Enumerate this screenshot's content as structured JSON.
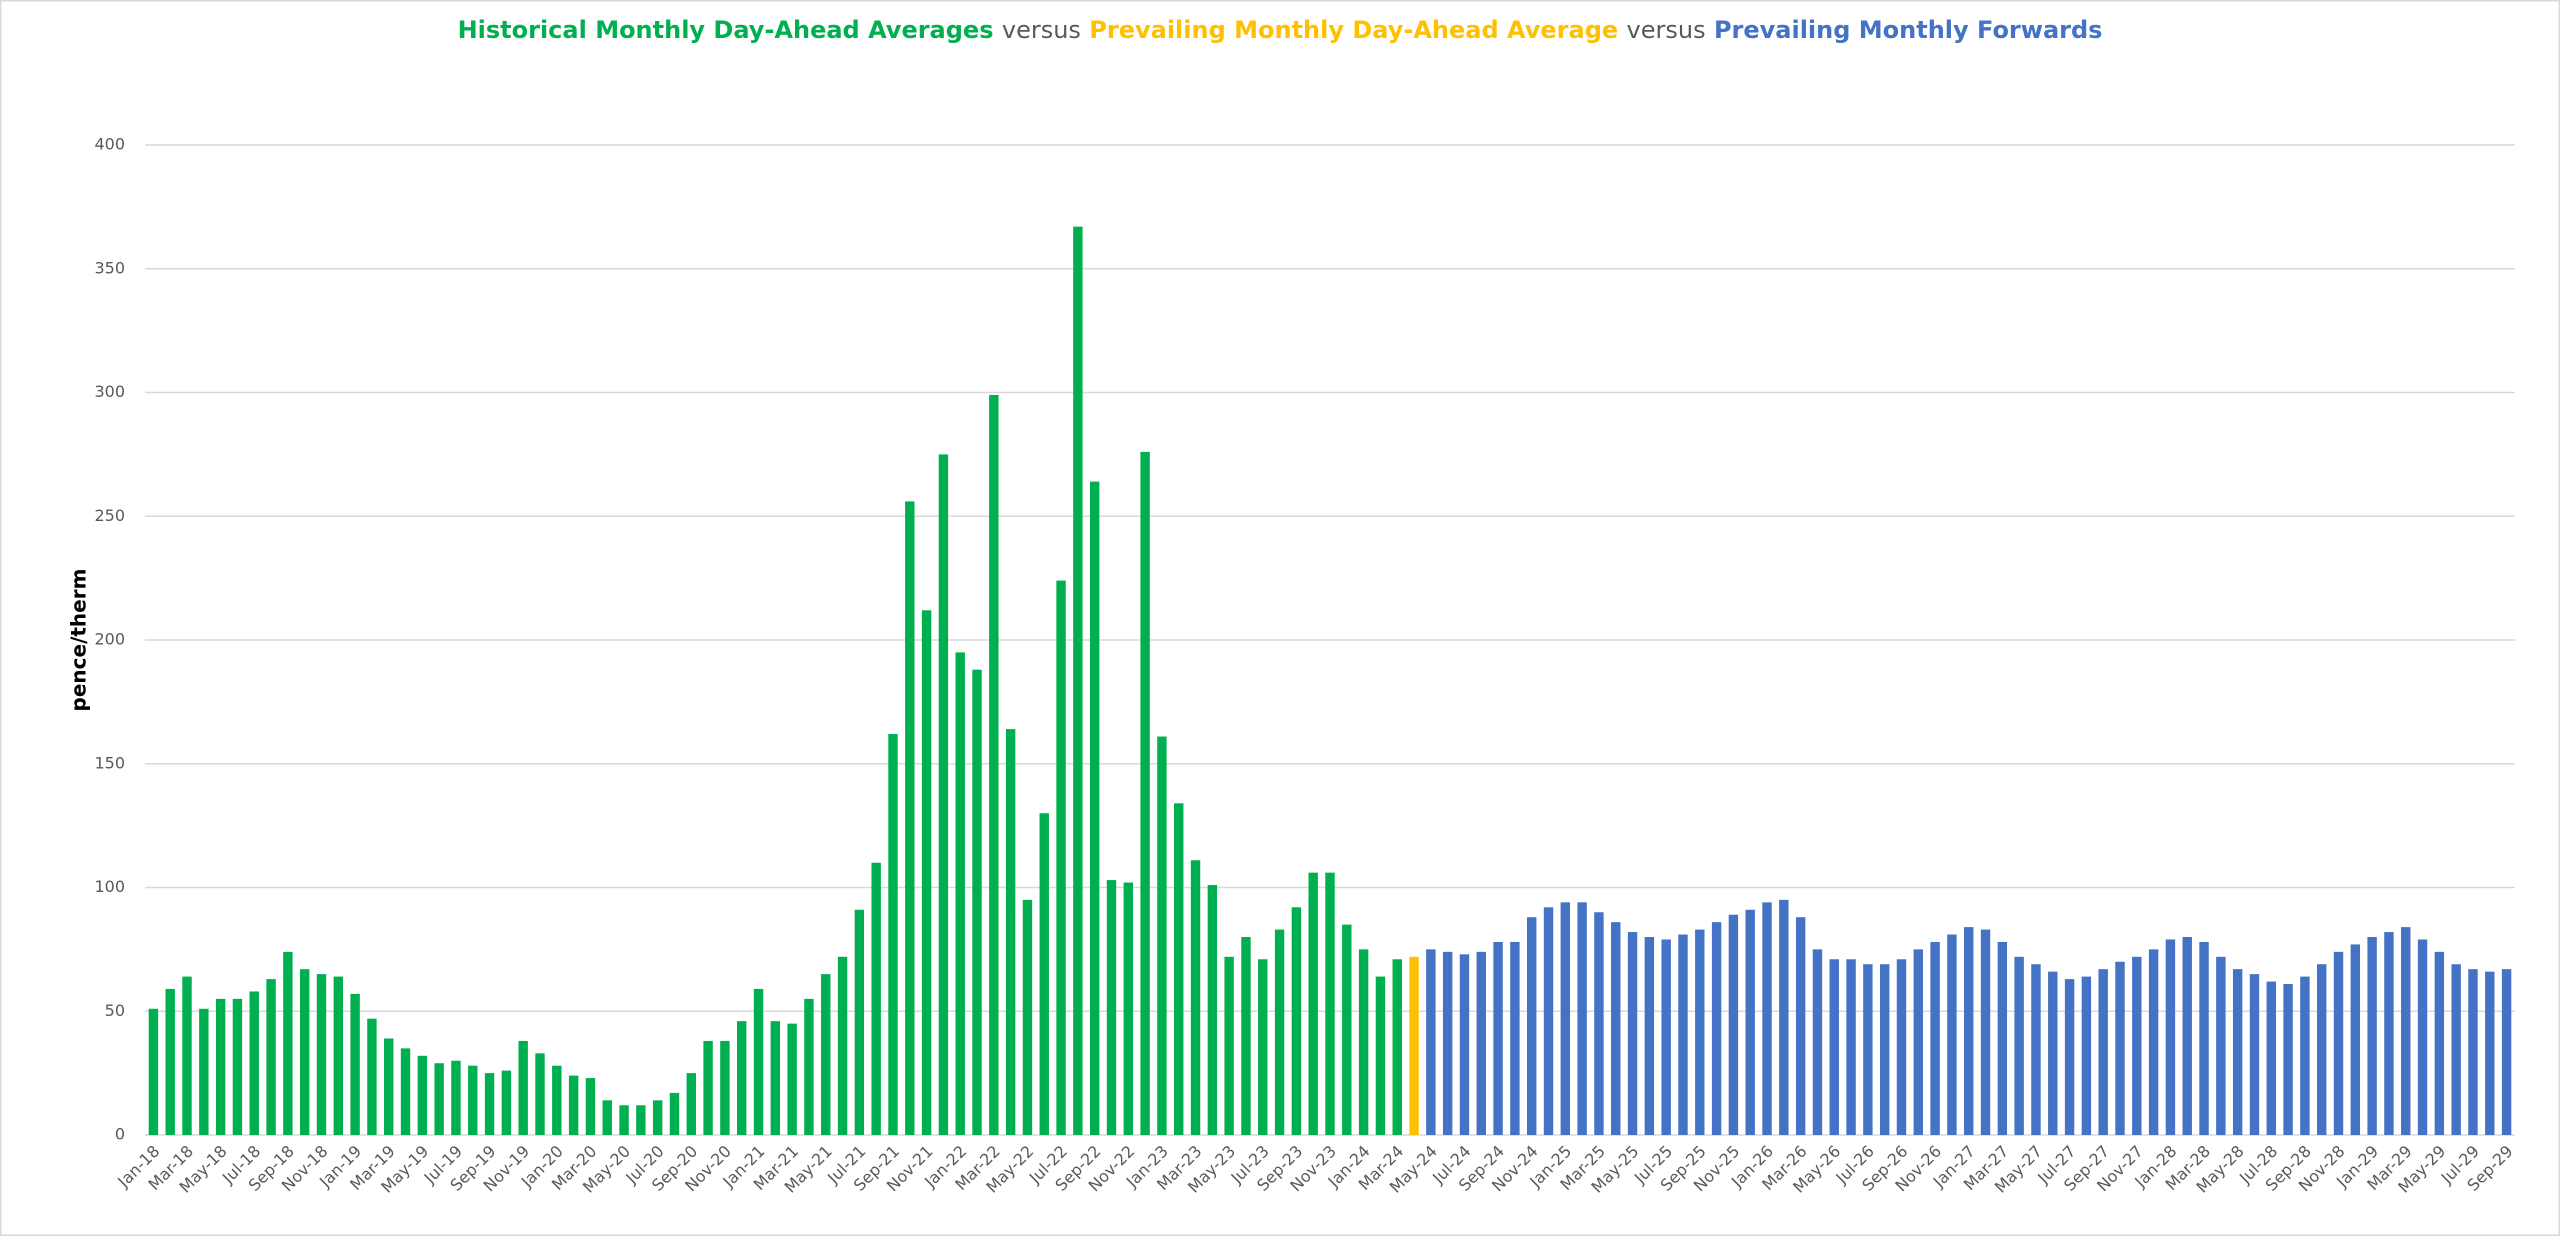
{
  "chart_data": {
    "type": "bar",
    "connector": "versus",
    "y_label": "pence/therm",
    "categories": [
      "Jan-18",
      null,
      "Mar-18",
      null,
      "May-18",
      null,
      "Jul-18",
      null,
      "Sep-18",
      null,
      "Nov-18",
      null,
      "Jan-19",
      null,
      "Mar-19",
      null,
      "May-19",
      null,
      "Jul-19",
      null,
      "Sep-19",
      null,
      "Nov-19",
      null,
      "Jan-20",
      null,
      "Mar-20",
      null,
      "May-20",
      null,
      "Jul-20",
      null,
      "Sep-20",
      null,
      "Nov-20",
      null,
      "Jan-21",
      null,
      "Mar-21",
      null,
      "May-21",
      null,
      "Jul-21",
      null,
      "Sep-21",
      null,
      "Nov-21",
      null,
      "Jan-22",
      null,
      "Mar-22",
      null,
      "May-22",
      null,
      "Jul-22",
      null,
      "Sep-22",
      null,
      "Nov-22",
      null,
      "Jan-23",
      null,
      "Mar-23",
      null,
      "May-23",
      null,
      "Jul-23",
      null,
      "Sep-23",
      null,
      "Nov-23",
      null,
      "Jan-24",
      null,
      "Mar-24",
      null,
      "May-24",
      null,
      "Jul-24",
      null,
      "Sep-24",
      null,
      "Nov-24",
      null,
      "Jan-25",
      null,
      "Mar-25",
      null,
      "May-25",
      null,
      "Jul-25",
      null,
      "Sep-25",
      null,
      "Nov-25",
      null,
      "Jan-26",
      null,
      "Mar-26",
      null,
      "May-26",
      null,
      "Jul-26",
      null,
      "Sep-26",
      null,
      "Nov-26",
      null,
      "Jan-27",
      null,
      "Mar-27",
      null,
      "May-27",
      null,
      "Jul-27",
      null,
      "Sep-27",
      null,
      "Nov-27",
      null,
      "Jan-28",
      null,
      "Mar-28",
      null,
      "May-28",
      null,
      "Jul-28",
      null,
      "Sep-28",
      null,
      "Nov-28",
      null,
      "Jan-29",
      null,
      "Mar-29",
      null,
      "May-29",
      null,
      "Jul-29",
      null,
      "Sep-29"
    ],
    "series": [
      {
        "name": "Historical Monthly Day-Ahead Averages",
        "color": "#00b050",
        "values": [
          51,
          59,
          64,
          51,
          55,
          55,
          58,
          63,
          74,
          67,
          65,
          64,
          57,
          47,
          39,
          35,
          32,
          29,
          30,
          28,
          25,
          26,
          38,
          33,
          28,
          24,
          23,
          14,
          12,
          12,
          14,
          17,
          25,
          38,
          38,
          46,
          59,
          46,
          45,
          55,
          65,
          72,
          91,
          110,
          162,
          256,
          212,
          275,
          195,
          188,
          299,
          164,
          95,
          130,
          224,
          367,
          264,
          103,
          102,
          276,
          161,
          134,
          111,
          101,
          72,
          80,
          71,
          83,
          92,
          106,
          106,
          85,
          75,
          64,
          71,
          null,
          null,
          null,
          null,
          null,
          null,
          null,
          null,
          null,
          null,
          null,
          null,
          null,
          null,
          null,
          null,
          null,
          null,
          null,
          null,
          null,
          null,
          null,
          null,
          null,
          null,
          null,
          null,
          null,
          null,
          null,
          null,
          null,
          null,
          null,
          null,
          null,
          null,
          null,
          null,
          null,
          null,
          null,
          null,
          null,
          null,
          null,
          null,
          null,
          null,
          null,
          null,
          null,
          null,
          null,
          null,
          null,
          null,
          null,
          null,
          null,
          null,
          null,
          null,
          null,
          null
        ]
      },
      {
        "name": "Prevailing Monthly Day-Ahead Average",
        "color": "#ffc000",
        "values": [
          null,
          null,
          null,
          null,
          null,
          null,
          null,
          null,
          null,
          null,
          null,
          null,
          null,
          null,
          null,
          null,
          null,
          null,
          null,
          null,
          null,
          null,
          null,
          null,
          null,
          null,
          null,
          null,
          null,
          null,
          null,
          null,
          null,
          null,
          null,
          null,
          null,
          null,
          null,
          null,
          null,
          null,
          null,
          null,
          null,
          null,
          null,
          null,
          null,
          null,
          null,
          null,
          null,
          null,
          null,
          null,
          null,
          null,
          null,
          null,
          null,
          null,
          null,
          null,
          null,
          null,
          null,
          null,
          null,
          null,
          null,
          null,
          null,
          null,
          null,
          72,
          null,
          null,
          null,
          null,
          null,
          null,
          null,
          null,
          null,
          null,
          null,
          null,
          null,
          null,
          null,
          null,
          null,
          null,
          null,
          null,
          null,
          null,
          null,
          null,
          null,
          null,
          null,
          null,
          null,
          null,
          null,
          null,
          null,
          null,
          null,
          null,
          null,
          null,
          null,
          null,
          null,
          null,
          null,
          null,
          null,
          null,
          null,
          null,
          null,
          null,
          null,
          null,
          null,
          null,
          null,
          null,
          null,
          null,
          null,
          null,
          null,
          null,
          null,
          null,
          null
        ]
      },
      {
        "name": "Prevailing Monthly Forwards",
        "color": "#4472c4",
        "values": [
          null,
          null,
          null,
          null,
          null,
          null,
          null,
          null,
          null,
          null,
          null,
          null,
          null,
          null,
          null,
          null,
          null,
          null,
          null,
          null,
          null,
          null,
          null,
          null,
          null,
          null,
          null,
          null,
          null,
          null,
          null,
          null,
          null,
          null,
          null,
          null,
          null,
          null,
          null,
          null,
          null,
          null,
          null,
          null,
          null,
          null,
          null,
          null,
          null,
          null,
          null,
          null,
          null,
          null,
          null,
          null,
          null,
          null,
          null,
          null,
          null,
          null,
          null,
          null,
          null,
          null,
          null,
          null,
          null,
          null,
          null,
          null,
          null,
          null,
          null,
          null,
          75,
          74,
          73,
          74,
          78,
          78,
          88,
          92,
          94,
          94,
          90,
          86,
          82,
          80,
          79,
          81,
          83,
          86,
          89,
          91,
          94,
          95,
          88,
          75,
          71,
          71,
          69,
          69,
          71,
          75,
          78,
          81,
          84,
          83,
          78,
          72,
          69,
          66,
          63,
          64,
          67,
          70,
          72,
          75,
          79,
          80,
          78,
          72,
          67,
          65,
          62,
          61,
          64,
          69,
          74,
          77,
          80,
          82,
          84,
          79,
          74,
          69,
          67,
          66,
          67
        ]
      }
    ],
    "ylim": [
      0,
      400
    ],
    "yticks": [
      0,
      50,
      100,
      150,
      200,
      250,
      300,
      350,
      400
    ],
    "grid": true
  }
}
